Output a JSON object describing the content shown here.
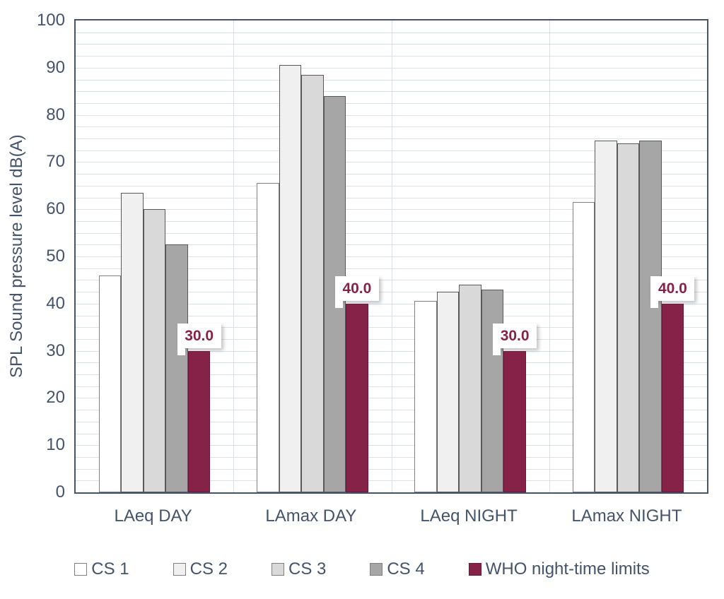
{
  "chart_data": {
    "type": "bar",
    "title": "",
    "categories": [
      "LAeq DAY",
      "LAmax DAY",
      "LAeq NIGHT",
      "LAmax NIGHT"
    ],
    "series": [
      {
        "name": "CS 1",
        "color": "#ffffff",
        "border": "#7f7f7f",
        "values": [
          46.0,
          65.5,
          40.5,
          61.5
        ]
      },
      {
        "name": "CS 2",
        "color": "#f0f0f0",
        "border": "#595959",
        "values": [
          63.5,
          90.5,
          42.5,
          74.5
        ]
      },
      {
        "name": "CS 3",
        "color": "#d9d9d9",
        "border": "#595959",
        "values": [
          60.0,
          88.5,
          44.0,
          74.0
        ]
      },
      {
        "name": "CS 4",
        "color": "#a6a6a6",
        "border": "#595959",
        "values": [
          52.5,
          84.0,
          43.0,
          74.5
        ]
      },
      {
        "name": "WHO night-time limits",
        "color": "#862148",
        "border": "#69183a",
        "values": [
          30.0,
          40.0,
          30.0,
          40.0
        ],
        "data_labels": [
          "30.0",
          "40.0",
          "30.0",
          "40.0"
        ]
      }
    ],
    "xlabel": "",
    "ylabel": "SPL Sound pressure level dB(A)",
    "ylim": [
      0,
      100
    ],
    "y_major_step": 10,
    "y_minor_step": 2.5,
    "y_tick_labels": [
      "0",
      "10",
      "20",
      "30",
      "40",
      "50",
      "60",
      "70",
      "80",
      "90",
      "100"
    ],
    "grid": true,
    "legend_position": "bottom"
  },
  "style": {
    "axis_text_color": "#44546a",
    "plot_border_color": "#44546a",
    "gridline_color": "#d9e0ec",
    "data_label_color": "#862148",
    "data_label_bg": "#ffffff",
    "accent_color": "#862148"
  }
}
